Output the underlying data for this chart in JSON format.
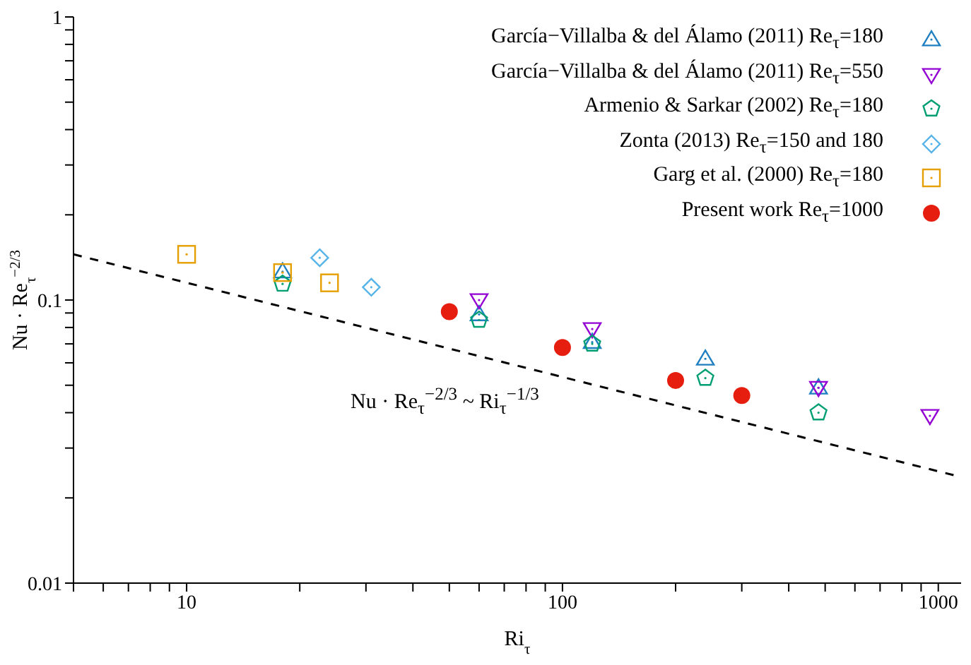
{
  "chart_data": {
    "type": "scatter",
    "xlabel": "Ri$_{τ}$",
    "ylabel": "Nu · Re$_{τ}$$^{−2/3}$",
    "log": "xy",
    "legend": "top right",
    "xlim": [
      5,
      1150
    ],
    "ylim": [
      0.01,
      1
    ],
    "xticks": [
      {
        "value": 5,
        "label": null
      },
      {
        "value": 6,
        "label": null
      },
      {
        "value": 7,
        "label": null
      },
      {
        "value": 8,
        "label": null
      },
      {
        "value": 9,
        "label": null
      },
      10,
      {
        "value": 20,
        "label": null
      },
      {
        "value": 30,
        "label": null
      },
      {
        "value": 40,
        "label": null
      },
      {
        "value": 50,
        "label": null
      },
      {
        "value": 60,
        "label": null
      },
      {
        "value": 70,
        "label": null
      },
      {
        "value": 80,
        "label": null
      },
      {
        "value": 90,
        "label": null
      },
      100,
      {
        "value": 200,
        "label": null
      },
      {
        "value": 300,
        "label": null
      },
      {
        "value": 400,
        "label": null
      },
      {
        "value": 500,
        "label": null
      },
      {
        "value": 600,
        "label": null
      },
      {
        "value": 700,
        "label": null
      },
      {
        "value": 800,
        "label": null
      },
      {
        "value": 900,
        "label": null
      },
      1000
    ],
    "yticks": [
      0.01,
      {
        "value": 0.02,
        "label": null
      },
      {
        "value": 0.03,
        "label": null
      },
      {
        "value": 0.04,
        "label": null
      },
      {
        "value": 0.05,
        "label": null
      },
      {
        "value": 0.06,
        "label": null
      },
      {
        "value": 0.07,
        "label": null
      },
      {
        "value": 0.08,
        "label": null
      },
      {
        "value": 0.09,
        "label": null
      },
      0.1,
      {
        "value": 0.2,
        "label": null
      },
      {
        "value": 0.3,
        "label": null
      },
      {
        "value": 0.4,
        "label": null
      },
      {
        "value": 0.5,
        "label": null
      },
      {
        "value": 0.6,
        "label": null
      },
      {
        "value": 0.7,
        "label": null
      },
      {
        "value": 0.8,
        "label": null
      },
      {
        "value": 0.9,
        "label": null
      },
      1
    ],
    "series": [
      {
        "name": "García−Villalba & del Álamo (2011) Re$_{τ}$=180",
        "marker": "triangle",
        "color": "#1f7fc0",
        "x": [
          18,
          60,
          120,
          240,
          480
        ],
        "values": [
          0.126,
          0.089,
          0.071,
          0.062,
          0.049
        ]
      },
      {
        "name": "García−Villalba & del Álamo (2011) Re$_{τ}$=550",
        "marker": "triangle-down",
        "color": "#9400d3",
        "x": [
          60,
          120,
          480,
          950
        ],
        "values": [
          0.1,
          0.079,
          0.049,
          0.039
        ]
      },
      {
        "name": "Armenio & Sarkar (2002) Re$_{τ}$=180",
        "color": "#009e73",
        "x": [
          18,
          60,
          120,
          240,
          480
        ],
        "values": [
          0.114,
          0.085,
          0.07,
          0.053,
          0.04
        ]
      },
      {
        "name": "Zonta (2013) Re$_{τ}$=150 and 180",
        "marker": "diamond",
        "color": "#56b4e9",
        "x": [
          22.6,
          31
        ],
        "values": [
          0.141,
          0.111
        ]
      },
      {
        "name": "Garg et al. (2000) Re$_{τ}$=180",
        "marker": "square",
        "color": "#e69f00",
        "x": [
          10,
          18,
          24
        ],
        "values": [
          0.145,
          0.125,
          0.115
        ]
      },
      {
        "name": "Present work  Re$_{τ}$=1000",
        "marker": "circle",
        "color": "#e51e10",
        "x": [
          50,
          100,
          200,
          300
        ],
        "values": [
          0.091,
          0.068,
          0.052,
          0.046
        ]
      },
      {
        "type": "line",
        "line_style": "dashed",
        "marker": "none",
        "color": "#000000",
        "x": [
          5,
          1150
        ],
        "values": [
          0.145,
          0.0237
        ]
      }
    ],
    "annotations": [
      "Nu · Re$_{τ}$$^{−2/3}$ ~ Ri$_{τ}$$^{−1/3}$"
    ]
  }
}
